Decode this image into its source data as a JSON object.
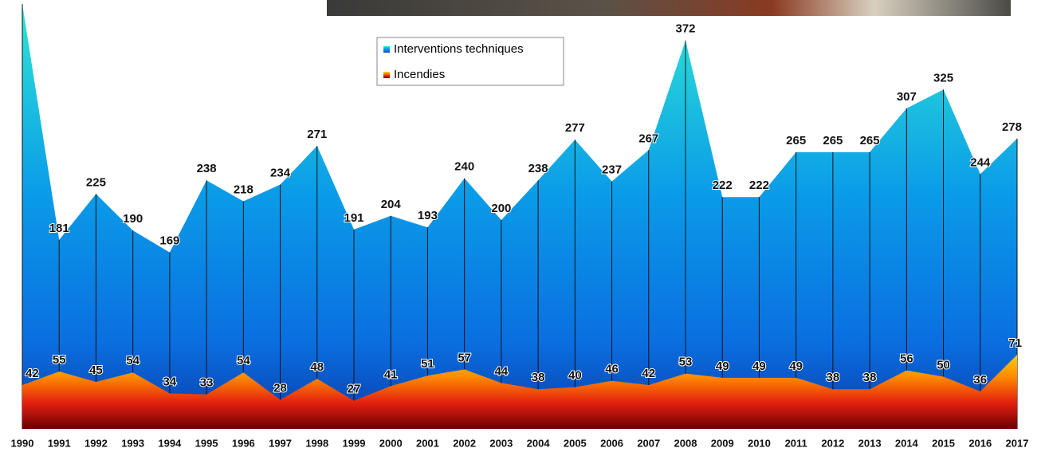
{
  "chart_data": {
    "type": "area",
    "categories": [
      "1990",
      "1991",
      "1992",
      "1993",
      "1994",
      "1995",
      "1996",
      "1997",
      "1998",
      "1999",
      "2000",
      "2001",
      "2002",
      "2003",
      "2004",
      "2005",
      "2006",
      "2007",
      "2008",
      "2009",
      "2010",
      "2011",
      "2012",
      "2013",
      "2014",
      "2015",
      "2016",
      "2017"
    ],
    "series": [
      {
        "name": "Interventions techniques",
        "color": "#0a86e6",
        "values": [
          407,
          181,
          225,
          190,
          169,
          238,
          218,
          234,
          271,
          191,
          204,
          193,
          240,
          200,
          238,
          277,
          237,
          267,
          372,
          222,
          222,
          265,
          265,
          265,
          307,
          325,
          244,
          278
        ]
      },
      {
        "name": "Incendies",
        "color": "#f06a00",
        "values": [
          42,
          55,
          45,
          54,
          34,
          33,
          54,
          28,
          48,
          27,
          41,
          51,
          57,
          44,
          38,
          40,
          46,
          42,
          53,
          49,
          49,
          49,
          38,
          38,
          56,
          50,
          36,
          71
        ]
      }
    ],
    "ylim": [
      0,
      410
    ],
    "legend": "top"
  }
}
